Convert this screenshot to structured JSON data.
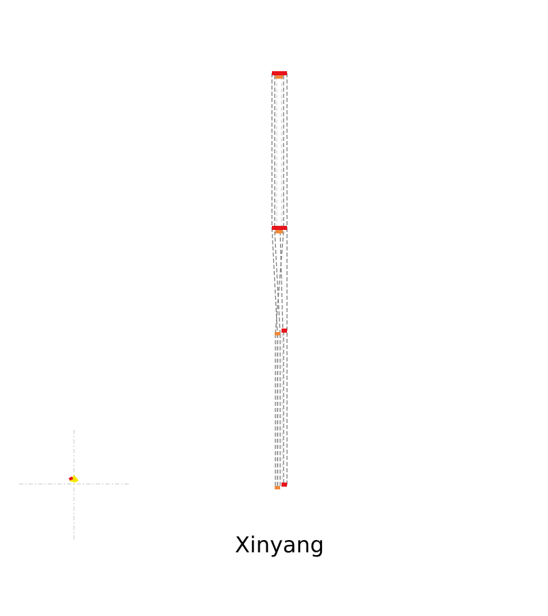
{
  "caption": {
    "text": "Xinyang"
  },
  "colors": {
    "track": "#7a7a7a",
    "track_faint": "#c8c8c8",
    "marker_primary": "#e8141c",
    "marker_secondary": "#f08a3c",
    "marker_highlight": "#f5e600",
    "crosshair": "#cfcfcf"
  },
  "markers": {
    "primary_count": 4,
    "secondary_count": 4
  }
}
